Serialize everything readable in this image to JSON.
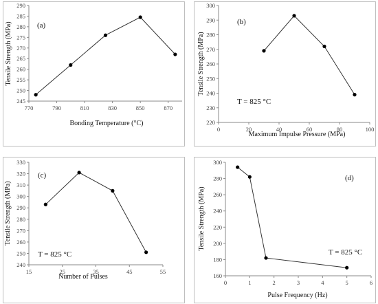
{
  "chart_data": [
    {
      "type": "line",
      "panel_label": "(a)",
      "annotation": "",
      "xlabel": "Bonding Temperature (°C)",
      "ylabel": "Tensile Strength (MPa)",
      "xlim": [
        770,
        880
      ],
      "ylim": [
        245,
        290
      ],
      "xticks": [
        "770",
        "790",
        "810",
        "830",
        "850",
        "870"
      ],
      "yticks": [
        "245",
        "250",
        "255",
        "260",
        "265",
        "270",
        "275",
        "280",
        "285",
        "290"
      ],
      "series": [
        {
          "x": [
            775,
            800,
            825,
            850,
            875
          ],
          "y": [
            248,
            262,
            276,
            284.5,
            267
          ]
        }
      ]
    },
    {
      "type": "line",
      "panel_label": "(b)",
      "annotation": "T = 825 °C",
      "xlabel": "Maximum Impulse Pressure (MPa)",
      "ylabel": "Tensile Strength (MPa)",
      "xlim": [
        0,
        100
      ],
      "ylim": [
        220,
        300
      ],
      "xticks": [
        "0",
        "20",
        "40",
        "60",
        "80",
        "100"
      ],
      "yticks": [
        "220",
        "230",
        "240",
        "250",
        "260",
        "270",
        "280",
        "290",
        "300"
      ],
      "series": [
        {
          "x": [
            30,
            50,
            70,
            90
          ],
          "y": [
            269,
            293,
            272,
            239
          ]
        }
      ]
    },
    {
      "type": "line",
      "panel_label": "(c)",
      "annotation": "T = 825 °C",
      "xlabel": "Number of Pulses",
      "ylabel": "Tensile Strength (MPa)",
      "xlim": [
        15,
        55
      ],
      "ylim": [
        240,
        330
      ],
      "xticks": [
        "15",
        "25",
        "35",
        "45",
        "55"
      ],
      "yticks": [
        "240",
        "250",
        "260",
        "270",
        "280",
        "290",
        "300",
        "310",
        "320",
        "330"
      ],
      "series": [
        {
          "x": [
            20,
            30,
            40,
            50
          ],
          "y": [
            293,
            321,
            305,
            251
          ]
        }
      ]
    },
    {
      "type": "line",
      "panel_label": "(d)",
      "annotation": "T = 825 °C",
      "xlabel": "Pulse Frequency (Hz)",
      "ylabel": "Tensile Strength (MPa)",
      "xlim": [
        0,
        6
      ],
      "ylim": [
        160,
        300
      ],
      "xticks": [
        "0",
        "1",
        "2",
        "3",
        "4",
        "5",
        "6"
      ],
      "yticks": [
        "160",
        "180",
        "200",
        "220",
        "240",
        "260",
        "280",
        "300"
      ],
      "series": [
        {
          "x": [
            0.5,
            1,
            1.67,
            5
          ],
          "y": [
            294,
            282,
            182,
            170
          ]
        }
      ]
    }
  ]
}
